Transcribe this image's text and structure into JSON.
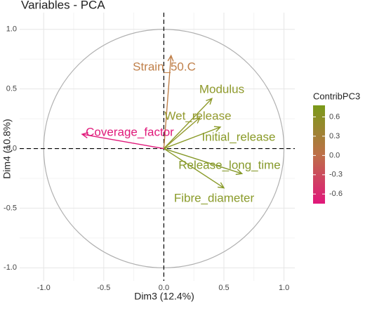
{
  "chart_data": {
    "type": "arrow",
    "title": "Variables - PCA",
    "xlabel": "Dim3 (12.4%)",
    "ylabel": "Dim4 (10.8%)",
    "categories": [
      "Strain_50.C",
      "Modulus",
      "Wet_release",
      "Initial_release",
      "Release_long_time",
      "Fibre_diameter",
      "Coverage_factor"
    ],
    "x": [
      0.06,
      0.4,
      0.3,
      0.47,
      0.65,
      0.5,
      -0.68
    ],
    "values": [
      0.78,
      0.42,
      0.26,
      0.18,
      -0.21,
      -0.33,
      0.12
    ],
    "colors": [
      "#c0804a",
      "#8f9a2c",
      "#939a2e",
      "#8a9b28",
      "#86992a",
      "#8a9b2a",
      "#e0197a"
    ],
    "xlim": [
      -1.2,
      1.09
    ],
    "ylim": [
      -1.11,
      1.14
    ],
    "xticks": [
      {
        "value": -1,
        "label": "-1.0"
      },
      {
        "value": -0.5,
        "label": "-0.5"
      },
      {
        "value": 0,
        "label": "0.0"
      },
      {
        "value": 0.5,
        "label": "0.5"
      },
      {
        "value": 1,
        "label": "1.0"
      }
    ],
    "yticks": [
      {
        "value": -1,
        "label": "-1.0"
      },
      {
        "value": -0.5,
        "label": "-0.5"
      },
      {
        "value": 0,
        "label": "0.0"
      },
      {
        "value": 0.5,
        "label": "0.5"
      },
      {
        "value": 1,
        "label": "1.0"
      }
    ],
    "grid": true,
    "colorbar": {
      "title": "ContribPC3",
      "lim": [
        -0.75,
        0.78
      ],
      "colors": [
        "#e0177a",
        "#bd7048",
        "#7a9a1a"
      ],
      "ticks": [
        0.6,
        0.3,
        {
          "value": 0,
          "label": "0.0"
        },
        -0.3,
        -0.6
      ]
    }
  }
}
